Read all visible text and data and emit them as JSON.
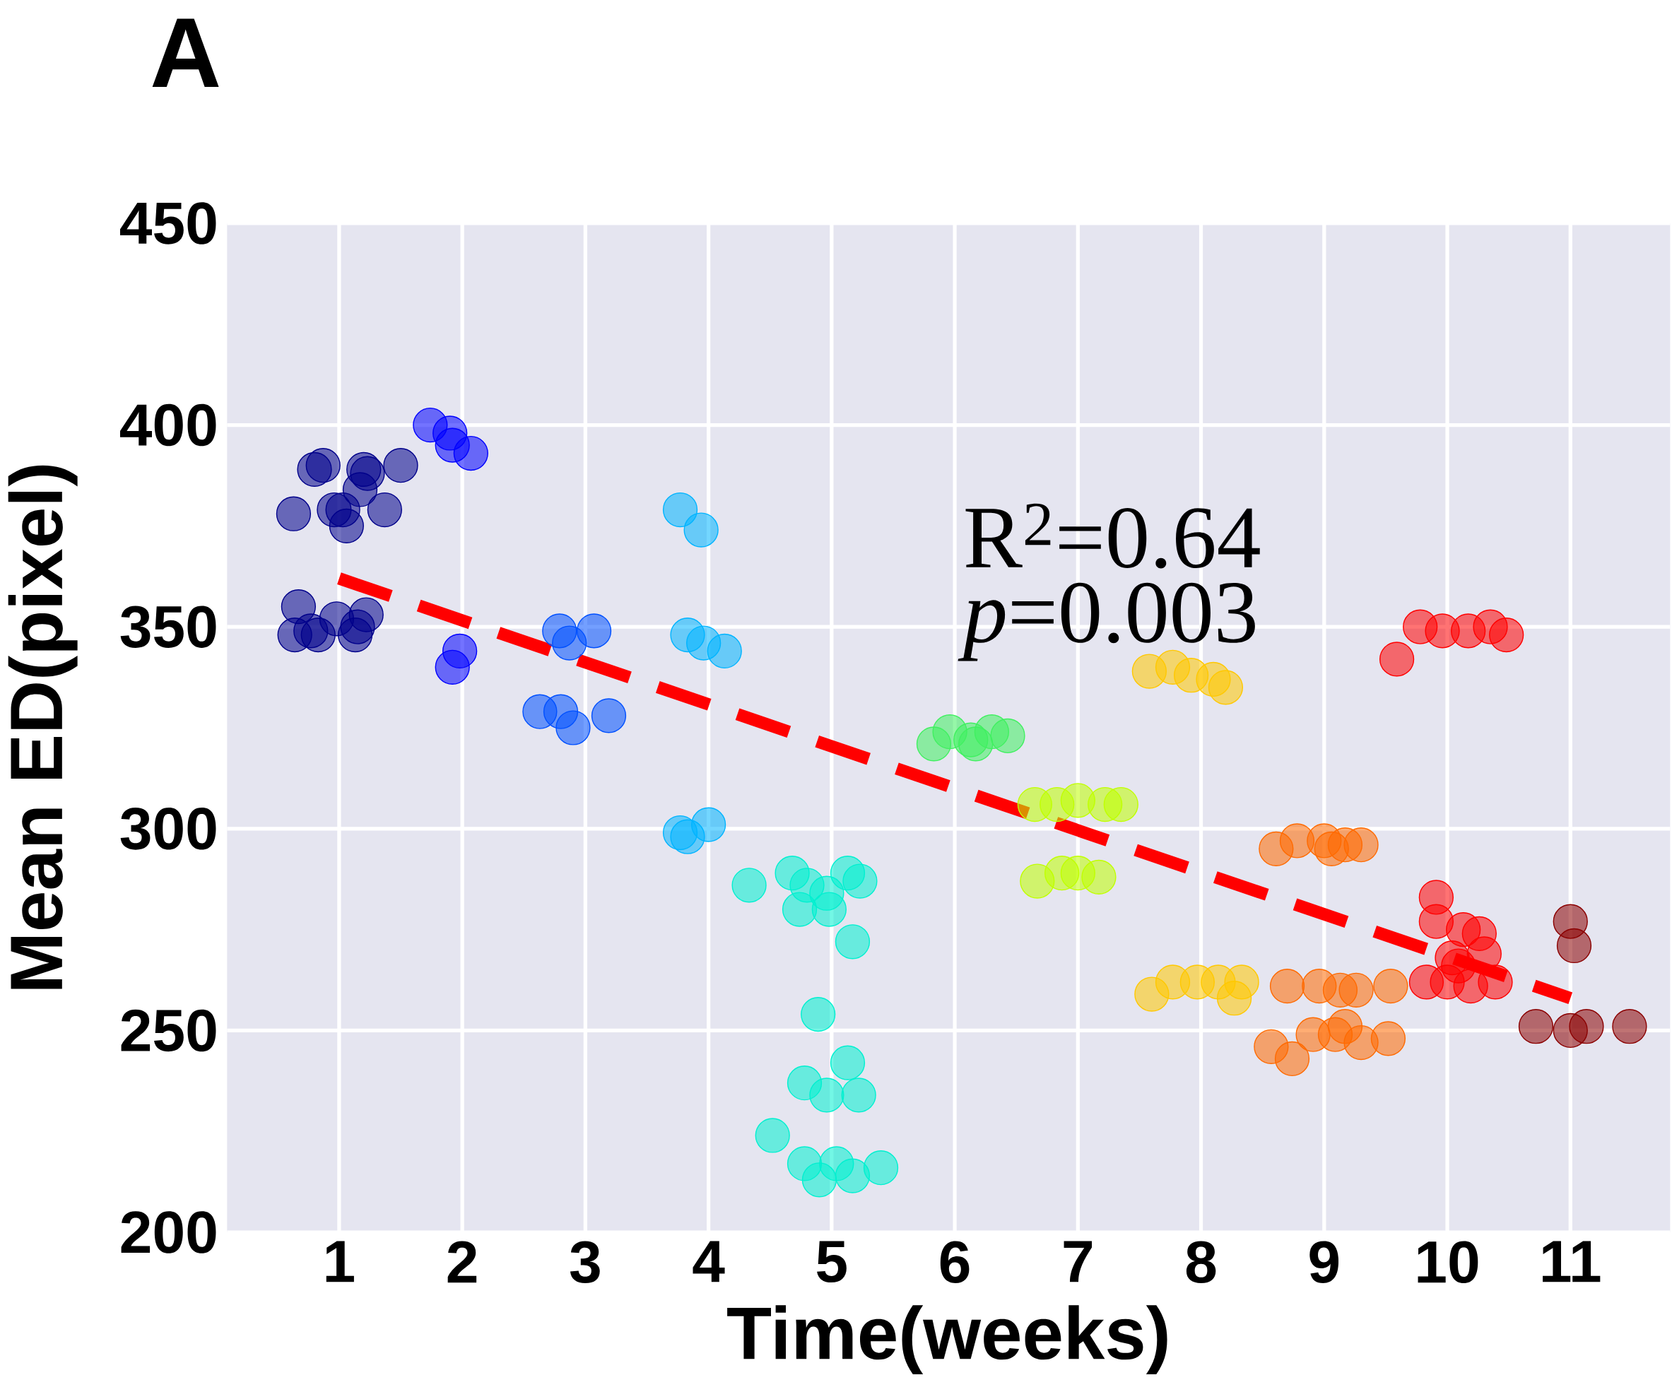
{
  "chart_data": {
    "type": "scatter",
    "title": "A",
    "xlabel": "Time(weeks)",
    "ylabel": "Mean ED(pixel)",
    "annotations": [
      "R$^{2}$=0.64",
      "*p*=0.003"
    ],
    "xlim": [
      0.09,
      11.81
    ],
    "ylim": [
      200,
      450
    ],
    "xticks": [
      1,
      2,
      3,
      4,
      5,
      6,
      7,
      8,
      9,
      10,
      11
    ],
    "yticks": [
      200,
      250,
      300,
      350,
      400,
      450
    ],
    "grid": true,
    "marker": "circle",
    "series": [
      {
        "color": "#00008b",
        "x": [
          0.63,
          0.8,
          0.87,
          0.96,
          1.03,
          1.06,
          1.2,
          1.17,
          1.37,
          1.5,
          1.23,
          0.67,
          0.64,
          0.83,
          0.98,
          0.77,
          1.13,
          1.22,
          1.15
        ],
        "values": [
          378,
          389,
          390,
          379,
          379,
          375,
          389,
          384,
          379,
          390,
          388,
          355,
          348,
          348,
          352,
          349,
          348,
          353,
          350
        ]
      },
      {
        "color": "#0000ff",
        "x": [
          1.74,
          1.9,
          1.92,
          2.07,
          1.98,
          1.92
        ],
        "values": [
          400,
          398,
          395,
          393,
          344,
          340
        ]
      },
      {
        "color": "#0050ff",
        "x": [
          2.79,
          2.87,
          3.07,
          2.63,
          2.8,
          2.9,
          3.19
        ],
        "values": [
          349,
          346,
          349,
          329,
          329,
          325,
          328
        ]
      },
      {
        "color": "#00b4ff",
        "x": [
          3.77,
          3.94,
          3.83,
          3.96,
          4.13,
          3.77,
          3.83,
          4.0
        ],
        "values": [
          379,
          374,
          348,
          346,
          344,
          299,
          298,
          301
        ]
      },
      {
        "color": "#00f0d0",
        "x": [
          4.33,
          4.68,
          4.74,
          4.8,
          4.96,
          5.13,
          5.23,
          4.98,
          5.17,
          4.89,
          5.13,
          4.78,
          4.96,
          5.22,
          4.52,
          4.78,
          5.04,
          5.17,
          5.4,
          4.9
        ],
        "values": [
          286,
          289,
          280,
          286,
          284,
          289,
          287,
          280,
          272,
          254,
          242,
          237,
          234,
          234,
          224,
          217,
          217,
          214,
          216,
          213
        ]
      },
      {
        "color": "#40f060",
        "x": [
          5.83,
          5.96,
          6.13,
          6.3,
          6.43,
          6.17
        ],
        "values": [
          321,
          324,
          322,
          324,
          323,
          321
        ]
      },
      {
        "color": "#c0ff00",
        "x": [
          6.65,
          6.83,
          7.0,
          7.22,
          7.35,
          6.67,
          6.87,
          7.0,
          7.17
        ],
        "values": [
          306,
          306,
          307,
          306,
          306,
          287,
          289,
          289,
          288
        ]
      },
      {
        "color": "#ffc800",
        "x": [
          7.58,
          7.77,
          7.92,
          8.1,
          8.2,
          7.6,
          7.77,
          7.97,
          8.14,
          8.33,
          8.27
        ],
        "values": [
          339,
          340,
          338,
          337,
          335,
          259,
          262,
          262,
          262,
          262,
          258
        ]
      },
      {
        "color": "#ff6a00",
        "x": [
          8.61,
          8.78,
          9.0,
          9.17,
          9.3,
          9.06,
          8.7,
          8.96,
          9.13,
          9.26,
          9.54,
          8.57,
          8.74,
          8.91,
          9.09,
          9.17,
          9.3,
          9.52
        ],
        "values": [
          295,
          297,
          297,
          296,
          296,
          295,
          261,
          261,
          260,
          260,
          261,
          246,
          243,
          249,
          249,
          251,
          247,
          248
        ]
      },
      {
        "color": "#ff0000",
        "x": [
          9.59,
          9.78,
          9.96,
          10.17,
          10.35,
          10.48,
          9.91,
          9.91,
          10.13,
          10.26,
          10.3,
          10.04,
          9.83,
          10.0,
          10.19,
          10.39,
          10.09
        ],
        "values": [
          342,
          350,
          349,
          349,
          350,
          348,
          283,
          277,
          275,
          274,
          269,
          268,
          262,
          262,
          261,
          262,
          266
        ]
      },
      {
        "color": "#8b0000",
        "x": [
          11.0,
          11.03,
          10.72,
          11.0,
          11.13,
          11.48
        ],
        "values": [
          277,
          271,
          251,
          250,
          251,
          251
        ]
      },
      {
        "type": "line",
        "color": "#ff0000",
        "marker": "none",
        "line_style": "dashed",
        "x": [
          1,
          11
        ],
        "values": [
          362,
          258
        ]
      }
    ]
  }
}
